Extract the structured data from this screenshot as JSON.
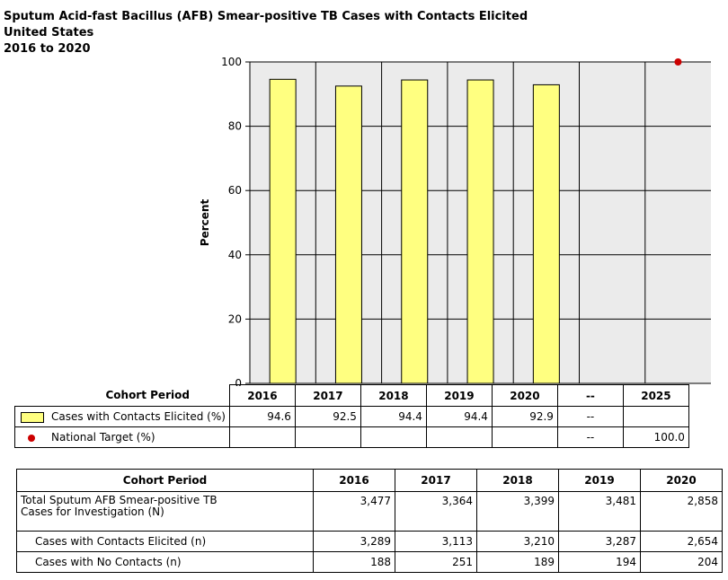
{
  "title": {
    "line1": "Sputum Acid-fast Bacillus (AFB) Smear-positive TB Cases with Contacts Elicited",
    "line2": "United States",
    "line3": "2016 to 2020"
  },
  "chart_data": {
    "type": "bar",
    "ylabel": "Percent",
    "ylim": [
      0,
      100
    ],
    "yticks": [
      0,
      20,
      40,
      60,
      80,
      100
    ],
    "grid": true,
    "categories": [
      "2016",
      "2017",
      "2018",
      "2019",
      "2020",
      "--",
      "2025"
    ],
    "series": [
      {
        "name": "Cases with Contacts Elicited (%)",
        "type": "bar",
        "color": "#ffff80",
        "values": [
          94.6,
          92.5,
          94.4,
          94.4,
          92.9,
          null,
          null
        ]
      },
      {
        "name": "National Target (%)",
        "type": "scatter",
        "color": "#cc0000",
        "values": [
          null,
          null,
          null,
          null,
          null,
          null,
          100.0
        ]
      }
    ]
  },
  "legend_table": {
    "header_label": "Cohort Period",
    "columns": [
      "2016",
      "2017",
      "2018",
      "2019",
      "2020",
      "--",
      "2025"
    ],
    "rows": [
      {
        "label": "Cases with Contacts Elicited (%)",
        "cells": [
          "94.6",
          "92.5",
          "94.4",
          "94.4",
          "92.9",
          "--",
          ""
        ]
      },
      {
        "label": "National Target (%)",
        "cells": [
          "",
          "",
          "",
          "",
          "",
          "--",
          "100.0"
        ]
      }
    ]
  },
  "data_table": {
    "header_label": "Cohort Period",
    "columns": [
      "2016",
      "2017",
      "2018",
      "2019",
      "2020"
    ],
    "rows": [
      {
        "label_line1": "Total Sputum AFB Smear-positive TB",
        "label_line2": "Cases for Investigation (N)",
        "cells": [
          "3,477",
          "3,364",
          "3,399",
          "3,481",
          "2,858"
        ]
      },
      {
        "label": "Cases with Contacts Elicited (n)",
        "cells": [
          "3,289",
          "3,113",
          "3,210",
          "3,287",
          "2,654"
        ]
      },
      {
        "label": "Cases with No Contacts (n)",
        "cells": [
          "188",
          "251",
          "189",
          "194",
          "204"
        ]
      }
    ]
  }
}
